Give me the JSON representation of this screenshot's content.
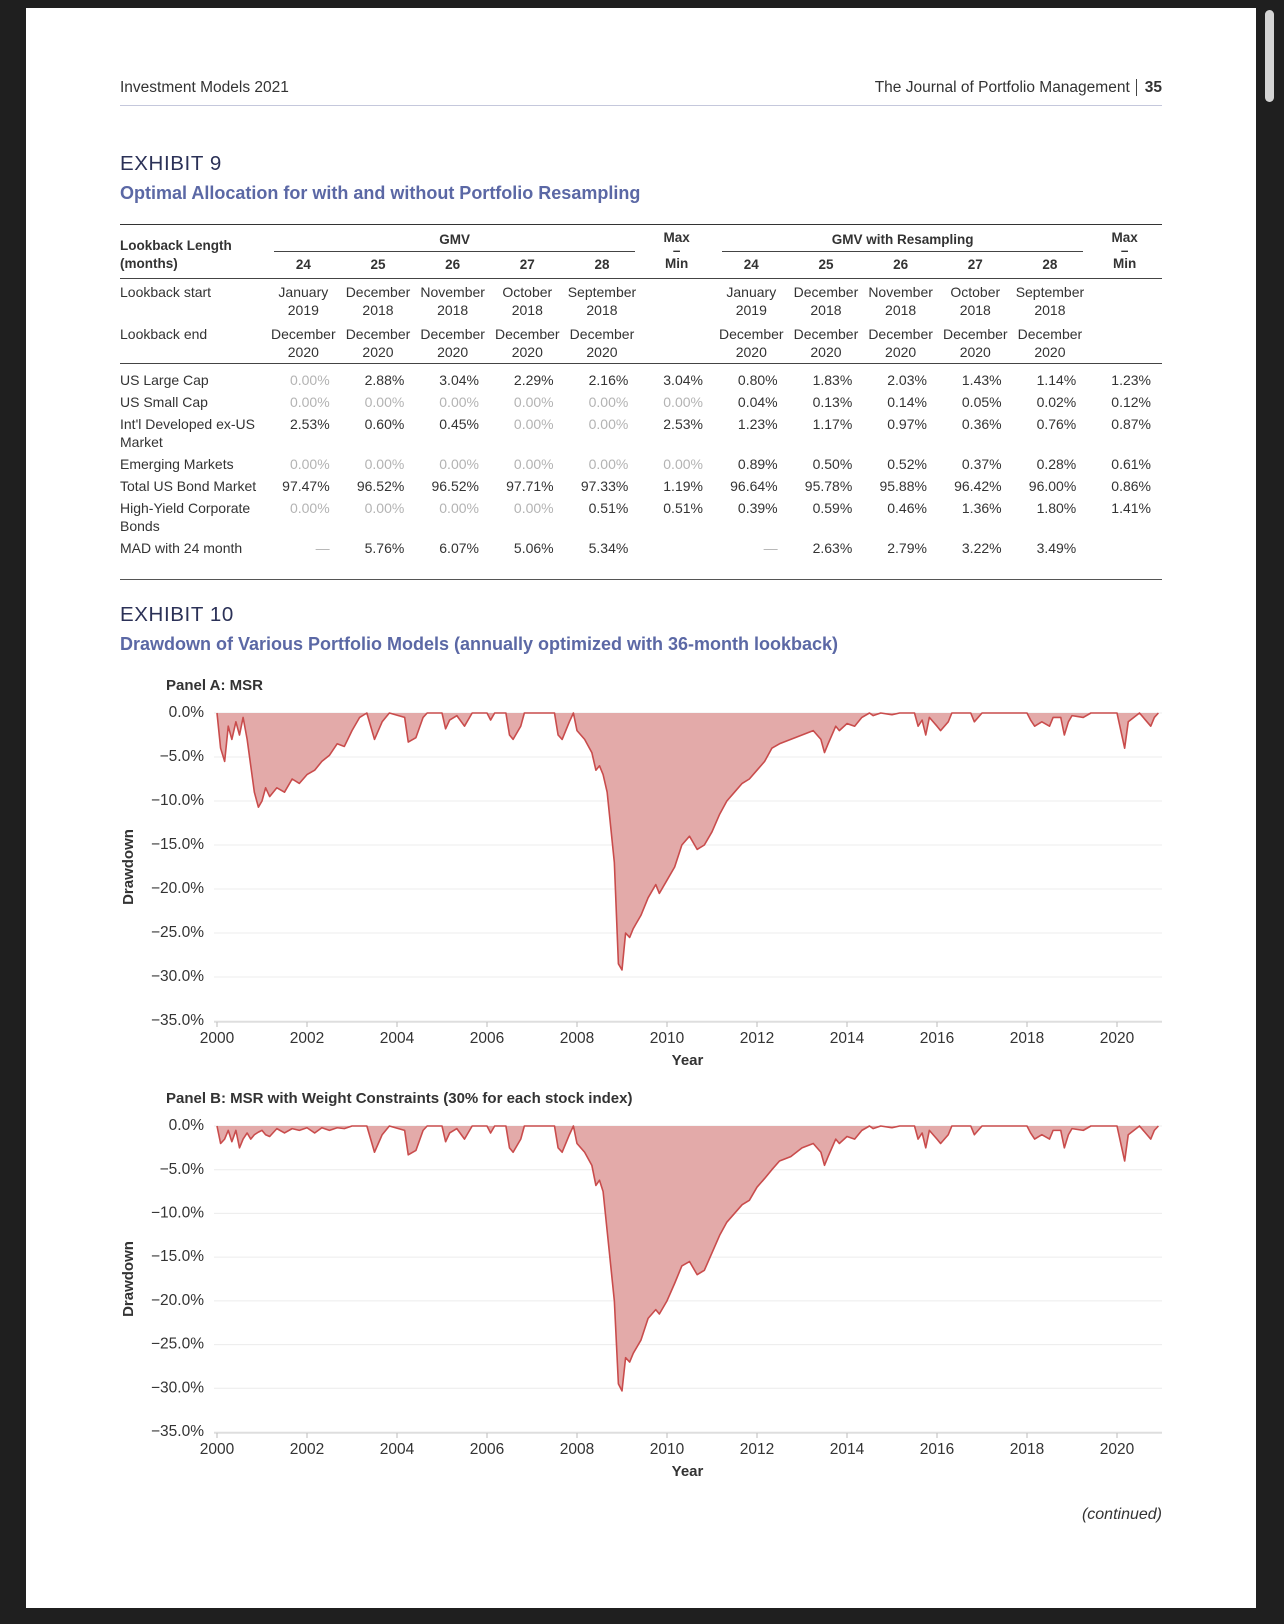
{
  "header": {
    "left": "Investment Models 2021",
    "right": "The Journal of Portfolio Management",
    "page": "35"
  },
  "exhibit9": {
    "label": "EXHIBIT 9",
    "title": "Optimal Allocation for with and without Portfolio Resampling",
    "table": {
      "corner": "Lookback Length (months)",
      "groups": [
        {
          "name": "GMV",
          "lengths": [
            24,
            25,
            26,
            27,
            28
          ],
          "range": "Max – Min"
        },
        {
          "name": "GMV with Resampling",
          "lengths": [
            24,
            25,
            26,
            27,
            28
          ],
          "range": "Max – Min"
        }
      ],
      "rows": [
        {
          "label": "Lookback start",
          "cells": [
            "January 2019",
            "December 2018",
            "November 2018",
            "October 2018",
            "September 2018",
            null,
            "January 2019",
            "December 2018",
            "November 2018",
            "October 2018",
            "September 2018",
            null
          ]
        },
        {
          "label": "Lookback end",
          "cells": [
            "December 2020",
            "December 2020",
            "December 2020",
            "December 2020",
            "December 2020",
            null,
            "December 2020",
            "December 2020",
            "December 2020",
            "December 2020",
            "December 2020",
            null
          ]
        },
        {
          "label": "US Large Cap",
          "cells": [
            "0.00%",
            "2.88%",
            "3.04%",
            "2.29%",
            "2.16%",
            "3.04%",
            "0.80%",
            "1.83%",
            "2.03%",
            "1.43%",
            "1.14%",
            "1.23%"
          ]
        },
        {
          "label": "US Small Cap",
          "cells": [
            "0.00%",
            "0.00%",
            "0.00%",
            "0.00%",
            "0.00%",
            "0.00%",
            "0.04%",
            "0.13%",
            "0.14%",
            "0.05%",
            "0.02%",
            "0.12%"
          ]
        },
        {
          "label": "Int'l Developed ex-US Market",
          "cells": [
            "2.53%",
            "0.60%",
            "0.45%",
            "0.00%",
            "0.00%",
            "2.53%",
            "1.23%",
            "1.17%",
            "0.97%",
            "0.36%",
            "0.76%",
            "0.87%"
          ]
        },
        {
          "label": "Emerging Markets",
          "cells": [
            "0.00%",
            "0.00%",
            "0.00%",
            "0.00%",
            "0.00%",
            "0.00%",
            "0.89%",
            "0.50%",
            "0.52%",
            "0.37%",
            "0.28%",
            "0.61%"
          ]
        },
        {
          "label": "Total US Bond Market",
          "cells": [
            "97.47%",
            "96.52%",
            "96.52%",
            "97.71%",
            "97.33%",
            "1.19%",
            "96.64%",
            "95.78%",
            "95.88%",
            "96.42%",
            "96.00%",
            "0.86%"
          ]
        },
        {
          "label": "High-Yield Corporate Bonds",
          "cells": [
            "0.00%",
            "0.00%",
            "0.00%",
            "0.00%",
            "0.51%",
            "0.51%",
            "0.39%",
            "0.59%",
            "0.46%",
            "1.36%",
            "1.80%",
            "1.41%"
          ]
        },
        {
          "label": "MAD with 24 month",
          "cells": [
            "—",
            "5.76%",
            "6.07%",
            "5.06%",
            "5.34%",
            null,
            "—",
            "2.63%",
            "2.79%",
            "3.22%",
            "3.49%",
            null
          ]
        }
      ]
    }
  },
  "exhibit10": {
    "label": "EXHIBIT 10",
    "title": "Drawdown of Various Portfolio Models (annually optimized with 36-month lookback)"
  },
  "chart_data": [
    {
      "type": "area",
      "title": "Panel A: MSR",
      "x_label": "Year",
      "y_label": "Drawdown",
      "x": [
        2000.0,
        2000.08,
        2000.17,
        2000.25,
        2000.33,
        2000.42,
        2000.5,
        2000.58,
        2000.67,
        2000.75,
        2000.83,
        2000.92,
        2001.0,
        2001.08,
        2001.17,
        2001.33,
        2001.5,
        2001.67,
        2001.83,
        2002.0,
        2002.17,
        2002.33,
        2002.5,
        2002.67,
        2002.83,
        2003.0,
        2003.17,
        2003.33,
        2003.5,
        2003.67,
        2003.83,
        2004.17,
        2004.25,
        2004.42,
        2004.58,
        2004.67,
        2005.0,
        2005.08,
        2005.17,
        2005.33,
        2005.5,
        2005.67,
        2006.0,
        2006.08,
        2006.17,
        2006.42,
        2006.5,
        2006.58,
        2006.75,
        2006.83,
        2007.5,
        2007.58,
        2007.67,
        2007.83,
        2007.92,
        2008.0,
        2008.17,
        2008.33,
        2008.42,
        2008.5,
        2008.58,
        2008.67,
        2008.83,
        2008.92,
        2009.0,
        2009.08,
        2009.17,
        2009.25,
        2009.42,
        2009.58,
        2009.75,
        2009.83,
        2010.0,
        2010.17,
        2010.33,
        2010.5,
        2010.67,
        2010.83,
        2011.0,
        2011.17,
        2011.33,
        2011.5,
        2011.67,
        2011.83,
        2012.0,
        2012.17,
        2012.33,
        2012.5,
        2012.75,
        2013.0,
        2013.25,
        2013.42,
        2013.5,
        2013.58,
        2013.75,
        2013.83,
        2014.0,
        2014.17,
        2014.33,
        2014.5,
        2014.58,
        2014.75,
        2015.0,
        2015.17,
        2015.5,
        2015.58,
        2015.67,
        2015.75,
        2015.83,
        2016.0,
        2016.08,
        2016.25,
        2016.33,
        2016.75,
        2016.83,
        2017.0,
        2018.0,
        2018.08,
        2018.17,
        2018.33,
        2018.5,
        2018.58,
        2018.75,
        2018.83,
        2018.92,
        2019.0,
        2019.25,
        2019.42,
        2020.0,
        2020.17,
        2020.25,
        2020.5,
        2020.75,
        2020.83,
        2020.92
      ],
      "series": [
        {
          "color": "#c94c4c",
          "fill": "#e3aaa9",
          "values": [
            0,
            -4,
            -5.5,
            -1.5,
            -3,
            -1,
            -2.5,
            -0.5,
            -3,
            -6,
            -9,
            -10.7,
            -10,
            -8.5,
            -9.5,
            -8.5,
            -9,
            -7.5,
            -8,
            -7,
            -6.5,
            -5.5,
            -4.8,
            -3.5,
            -3.8,
            -2,
            -0.5,
            0,
            -3,
            -1,
            0,
            -0.5,
            -3.3,
            -2.8,
            -0.5,
            0,
            0,
            -1.8,
            -0.8,
            -0.3,
            -1.5,
            0,
            0,
            -0.8,
            0,
            0,
            -2.5,
            -3,
            -1.5,
            0,
            0,
            -2.5,
            -3,
            -1,
            0,
            -2,
            -3,
            -4.5,
            -6.5,
            -6,
            -7,
            -9,
            -17,
            -28.5,
            -29.2,
            -25,
            -25.5,
            -24.5,
            -23,
            -21,
            -19.5,
            -20.5,
            -19,
            -17.5,
            -15,
            -14,
            -15.5,
            -15,
            -13.5,
            -11.5,
            -10,
            -9,
            -8,
            -7.5,
            -6.5,
            -5.5,
            -4,
            -3.5,
            -3,
            -2.5,
            -2,
            -3,
            -4.5,
            -3.5,
            -1.5,
            -2,
            -1.2,
            -1.5,
            -0.5,
            0,
            -0.3,
            0,
            -0.2,
            0,
            0,
            -1.5,
            -0.8,
            -2.5,
            -0.5,
            -1.5,
            -2,
            -1,
            0,
            0,
            -1,
            0,
            0,
            -0.8,
            -1.5,
            -1,
            -1.5,
            -0.5,
            -0.5,
            -2.5,
            -1,
            -0.3,
            -0.5,
            0,
            0,
            -4,
            -1,
            0,
            -1.5,
            -0.5,
            0
          ]
        }
      ],
      "xlim": [
        2000,
        2021
      ],
      "xticks": [
        2000,
        2002,
        2004,
        2006,
        2008,
        2010,
        2012,
        2014,
        2016,
        2018,
        2020
      ],
      "ylim": [
        -35,
        0
      ],
      "yticks": [
        {
          "value": 0,
          "label": "0.0%"
        },
        {
          "value": -5,
          "label": "−5.0%"
        },
        {
          "value": -10,
          "label": "−10.0%"
        },
        {
          "value": -15,
          "label": "−15.0%"
        },
        {
          "value": -20,
          "label": "−20.0%"
        },
        {
          "value": -25,
          "label": "−25.0%"
        },
        {
          "value": -30,
          "label": "−30.0%"
        },
        {
          "value": -35,
          "label": "−35.0%"
        }
      ],
      "grid": true
    },
    {
      "type": "area",
      "title": "Panel B: MSR with Weight Constraints (30% for each stock index)",
      "x_label": "Year",
      "y_label": "Drawdown",
      "x": [
        2000.0,
        2000.08,
        2000.17,
        2000.25,
        2000.33,
        2000.42,
        2000.5,
        2000.58,
        2000.67,
        2000.75,
        2000.83,
        2000.92,
        2001.0,
        2001.08,
        2001.17,
        2001.33,
        2001.5,
        2001.67,
        2001.83,
        2002.0,
        2002.17,
        2002.33,
        2002.5,
        2002.67,
        2002.83,
        2003.0,
        2003.17,
        2003.33,
        2003.5,
        2003.67,
        2003.83,
        2004.17,
        2004.25,
        2004.42,
        2004.58,
        2004.67,
        2005.0,
        2005.08,
        2005.17,
        2005.33,
        2005.5,
        2005.67,
        2006.0,
        2006.08,
        2006.17,
        2006.42,
        2006.5,
        2006.58,
        2006.75,
        2006.83,
        2007.5,
        2007.58,
        2007.67,
        2007.83,
        2007.92,
        2008.0,
        2008.17,
        2008.33,
        2008.42,
        2008.5,
        2008.58,
        2008.67,
        2008.83,
        2008.92,
        2009.0,
        2009.08,
        2009.17,
        2009.25,
        2009.42,
        2009.58,
        2009.75,
        2009.83,
        2010.0,
        2010.17,
        2010.33,
        2010.5,
        2010.67,
        2010.83,
        2011.0,
        2011.17,
        2011.33,
        2011.5,
        2011.67,
        2011.83,
        2012.0,
        2012.17,
        2012.33,
        2012.5,
        2012.75,
        2013.0,
        2013.25,
        2013.42,
        2013.5,
        2013.58,
        2013.75,
        2013.83,
        2014.0,
        2014.17,
        2014.33,
        2014.5,
        2014.58,
        2014.75,
        2015.0,
        2015.17,
        2015.5,
        2015.58,
        2015.67,
        2015.75,
        2015.83,
        2016.0,
        2016.08,
        2016.25,
        2016.33,
        2016.75,
        2016.83,
        2017.0,
        2018.0,
        2018.08,
        2018.17,
        2018.33,
        2018.5,
        2018.58,
        2018.75,
        2018.83,
        2018.92,
        2019.0,
        2019.25,
        2019.42,
        2020.0,
        2020.17,
        2020.25,
        2020.5,
        2020.75,
        2020.83,
        2020.92
      ],
      "series": [
        {
          "color": "#c94c4c",
          "fill": "#e3aaa9",
          "values": [
            0,
            -2,
            -1.5,
            -0.5,
            -1.8,
            -0.5,
            -2.5,
            -1.5,
            -0.8,
            -1.5,
            -1,
            -0.7,
            -0.5,
            -1,
            -1.2,
            -0.3,
            -0.8,
            -0.3,
            -0.5,
            -0.2,
            -0.8,
            -0.2,
            -0.5,
            -0.2,
            -0.3,
            0,
            0,
            0,
            -3,
            -1,
            0,
            -0.5,
            -3.3,
            -2.8,
            -0.5,
            0,
            0,
            -1.8,
            -0.8,
            -0.3,
            -1.5,
            0,
            0,
            -0.8,
            0,
            0,
            -2.5,
            -3,
            -1.5,
            0,
            0,
            -2.5,
            -3,
            -1,
            0,
            -2,
            -3,
            -4.5,
            -6.8,
            -6.2,
            -7.5,
            -12,
            -20,
            -29.5,
            -30.3,
            -26.5,
            -27,
            -26,
            -24.5,
            -22,
            -21,
            -21.5,
            -20,
            -18,
            -16,
            -15.5,
            -17,
            -16.5,
            -14.5,
            -12.5,
            -11,
            -10,
            -9,
            -8.5,
            -7,
            -6,
            -5,
            -4,
            -3.5,
            -2.5,
            -2,
            -3,
            -4.5,
            -3.5,
            -1.5,
            -2,
            -1.2,
            -1.5,
            -0.5,
            0,
            -0.3,
            0,
            -0.2,
            0,
            0,
            -1.5,
            -0.8,
            -2.5,
            -0.5,
            -1.5,
            -2,
            -1,
            0,
            0,
            -1,
            0,
            0,
            -0.8,
            -1.5,
            -1,
            -1.5,
            -0.5,
            -0.5,
            -2.5,
            -1,
            -0.3,
            -0.5,
            0,
            0,
            -4,
            -1,
            0,
            -1.5,
            -0.5,
            0
          ]
        }
      ],
      "xlim": [
        2000,
        2021
      ],
      "xticks": [
        2000,
        2002,
        2004,
        2006,
        2008,
        2010,
        2012,
        2014,
        2016,
        2018,
        2020
      ],
      "ylim": [
        -35,
        0
      ],
      "yticks": [
        {
          "value": 0,
          "label": "0.0%"
        },
        {
          "value": -5,
          "label": "−5.0%"
        },
        {
          "value": -10,
          "label": "−10.0%"
        },
        {
          "value": -15,
          "label": "−15.0%"
        },
        {
          "value": -20,
          "label": "−20.0%"
        },
        {
          "value": -25,
          "label": "−25.0%"
        },
        {
          "value": -30,
          "label": "−30.0%"
        },
        {
          "value": -35,
          "label": "−35.0%"
        }
      ],
      "grid": true
    }
  ],
  "footer": "(continued)"
}
